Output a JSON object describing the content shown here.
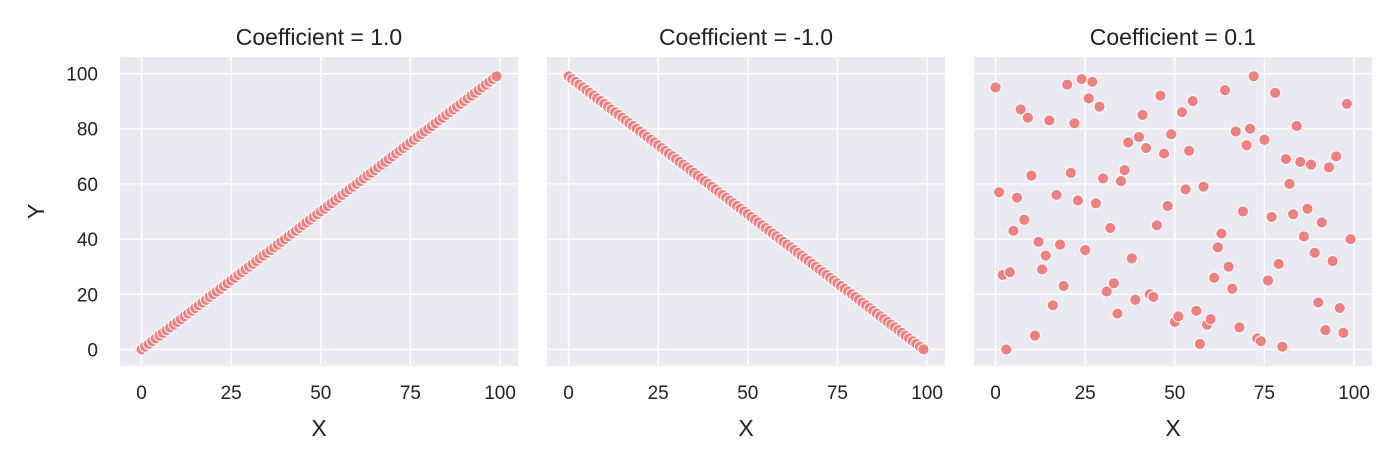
{
  "figure": {
    "point_color": "#f08080",
    "background_color": "#eaeaf2"
  },
  "chart_data": [
    {
      "type": "scatter",
      "title": "Coefficient = 1.0",
      "xlabel": "X",
      "ylabel": "Y",
      "xlim": [
        -6,
        105
      ],
      "ylim": [
        -6,
        106
      ],
      "xticks": [
        0,
        25,
        50,
        75,
        100
      ],
      "yticks": [
        0,
        20,
        40,
        60,
        80,
        100
      ],
      "grid": true,
      "x": [
        0,
        1,
        2,
        3,
        4,
        5,
        6,
        7,
        8,
        9,
        10,
        11,
        12,
        13,
        14,
        15,
        16,
        17,
        18,
        19,
        20,
        21,
        22,
        23,
        24,
        25,
        26,
        27,
        28,
        29,
        30,
        31,
        32,
        33,
        34,
        35,
        36,
        37,
        38,
        39,
        40,
        41,
        42,
        43,
        44,
        45,
        46,
        47,
        48,
        49,
        50,
        51,
        52,
        53,
        54,
        55,
        56,
        57,
        58,
        59,
        60,
        61,
        62,
        63,
        64,
        65,
        66,
        67,
        68,
        69,
        70,
        71,
        72,
        73,
        74,
        75,
        76,
        77,
        78,
        79,
        80,
        81,
        82,
        83,
        84,
        85,
        86,
        87,
        88,
        89,
        90,
        91,
        92,
        93,
        94,
        95,
        96,
        97,
        98,
        99
      ],
      "y": [
        0,
        1,
        2,
        3,
        4,
        5,
        6,
        7,
        8,
        9,
        10,
        11,
        12,
        13,
        14,
        15,
        16,
        17,
        18,
        19,
        20,
        21,
        22,
        23,
        24,
        25,
        26,
        27,
        28,
        29,
        30,
        31,
        32,
        33,
        34,
        35,
        36,
        37,
        38,
        39,
        40,
        41,
        42,
        43,
        44,
        45,
        46,
        47,
        48,
        49,
        50,
        51,
        52,
        53,
        54,
        55,
        56,
        57,
        58,
        59,
        60,
        61,
        62,
        63,
        64,
        65,
        66,
        67,
        68,
        69,
        70,
        71,
        72,
        73,
        74,
        75,
        76,
        77,
        78,
        79,
        80,
        81,
        82,
        83,
        84,
        85,
        86,
        87,
        88,
        89,
        90,
        91,
        92,
        93,
        94,
        95,
        96,
        97,
        98,
        99
      ]
    },
    {
      "type": "scatter",
      "title": "Coefficient = -1.0",
      "xlabel": "X",
      "ylabel": "",
      "xlim": [
        -6,
        105
      ],
      "ylim": [
        -6,
        106
      ],
      "xticks": [
        0,
        25,
        50,
        75,
        100
      ],
      "yticks": [
        0,
        20,
        40,
        60,
        80,
        100
      ],
      "grid": true,
      "x": [
        0,
        1,
        2,
        3,
        4,
        5,
        6,
        7,
        8,
        9,
        10,
        11,
        12,
        13,
        14,
        15,
        16,
        17,
        18,
        19,
        20,
        21,
        22,
        23,
        24,
        25,
        26,
        27,
        28,
        29,
        30,
        31,
        32,
        33,
        34,
        35,
        36,
        37,
        38,
        39,
        40,
        41,
        42,
        43,
        44,
        45,
        46,
        47,
        48,
        49,
        50,
        51,
        52,
        53,
        54,
        55,
        56,
        57,
        58,
        59,
        60,
        61,
        62,
        63,
        64,
        65,
        66,
        67,
        68,
        69,
        70,
        71,
        72,
        73,
        74,
        75,
        76,
        77,
        78,
        79,
        80,
        81,
        82,
        83,
        84,
        85,
        86,
        87,
        88,
        89,
        90,
        91,
        92,
        93,
        94,
        95,
        96,
        97,
        98,
        99
      ],
      "y": [
        99,
        98,
        97,
        96,
        95,
        94,
        93,
        92,
        91,
        90,
        89,
        88,
        87,
        86,
        85,
        84,
        83,
        82,
        81,
        80,
        79,
        78,
        77,
        76,
        75,
        74,
        73,
        72,
        71,
        70,
        69,
        68,
        67,
        66,
        65,
        64,
        63,
        62,
        61,
        60,
        59,
        58,
        57,
        56,
        55,
        54,
        53,
        52,
        51,
        50,
        49,
        48,
        47,
        46,
        45,
        44,
        43,
        42,
        41,
        40,
        39,
        38,
        37,
        36,
        35,
        34,
        33,
        32,
        31,
        30,
        29,
        28,
        27,
        26,
        25,
        24,
        23,
        22,
        21,
        20,
        19,
        18,
        17,
        16,
        15,
        14,
        13,
        12,
        11,
        10,
        9,
        8,
        7,
        6,
        5,
        4,
        3,
        2,
        1,
        0
      ]
    },
    {
      "type": "scatter",
      "title": "Coefficient = 0.1",
      "xlabel": "X",
      "ylabel": "",
      "xlim": [
        -6,
        105
      ],
      "ylim": [
        -6,
        106
      ],
      "xticks": [
        0,
        25,
        50,
        75,
        100
      ],
      "yticks": [
        0,
        20,
        40,
        60,
        80,
        100
      ],
      "grid": true,
      "x": [
        0,
        1,
        2,
        3,
        4,
        5,
        6,
        7,
        8,
        9,
        10,
        11,
        12,
        13,
        14,
        15,
        16,
        17,
        18,
        19,
        20,
        21,
        22,
        23,
        24,
        25,
        26,
        27,
        28,
        29,
        30,
        31,
        32,
        33,
        34,
        35,
        36,
        37,
        38,
        39,
        40,
        41,
        42,
        43,
        44,
        45,
        46,
        47,
        48,
        49,
        50,
        51,
        52,
        53,
        54,
        55,
        56,
        57,
        58,
        59,
        60,
        61,
        62,
        63,
        64,
        65,
        66,
        67,
        68,
        69,
        70,
        71,
        72,
        73,
        74,
        75,
        76,
        77,
        78,
        79,
        80,
        81,
        82,
        83,
        84,
        85,
        86,
        87,
        88,
        89,
        90,
        91,
        92,
        93,
        94,
        95,
        96,
        97,
        98,
        99
      ],
      "y": [
        95,
        57,
        27,
        0,
        28,
        43,
        55,
        87,
        47,
        84,
        63,
        5,
        39,
        29,
        34,
        83,
        16,
        56,
        38,
        23,
        96,
        64,
        82,
        54,
        98,
        36,
        91,
        97,
        53,
        88,
        62,
        21,
        44,
        24,
        13,
        61,
        65,
        75,
        33,
        18,
        77,
        85,
        73,
        20,
        19,
        45,
        92,
        71,
        52,
        78,
        10,
        12,
        86,
        58,
        72,
        90,
        14,
        2,
        59,
        9,
        11,
        26,
        37,
        42,
        94,
        30,
        22,
        79,
        8,
        50,
        74,
        80,
        99,
        4,
        3,
        76,
        25,
        48,
        93,
        31,
        1,
        69,
        60,
        49,
        81,
        68,
        41,
        51,
        67,
        35,
        17,
        46,
        7,
        66,
        32,
        70,
        15,
        6,
        89,
        40
      ]
    }
  ]
}
